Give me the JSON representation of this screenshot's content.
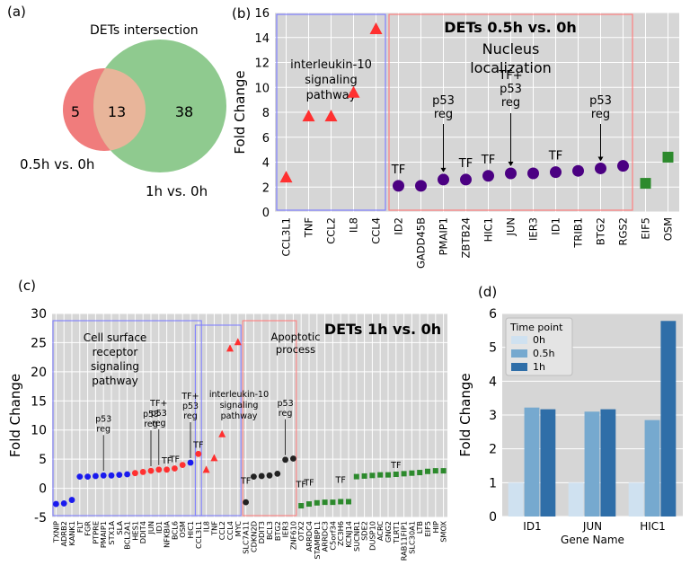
{
  "panels": {
    "a": {
      "label": "(a)",
      "title": "DETs intersection"
    },
    "b": {
      "label": "(b)"
    },
    "c": {
      "label": "(c)"
    },
    "d": {
      "label": "(d)"
    }
  },
  "colors": {
    "panel_bg": "#d6d6d6",
    "grid": "#ffffff",
    "venn_left": "#f07c7c",
    "venn_right": "#8fca8f",
    "venn_overlap": "#e8b59a",
    "red_marker": "#ff3030",
    "purple_marker": "#4b0082",
    "green_marker": "#2d8a2d",
    "blue_marker": "#1a1aee",
    "black_marker": "#222222",
    "blue_box": "#8080ff",
    "red_box": "#ff8080",
    "bar_0h": "#cfe1f0",
    "bar_05h": "#76a9cf",
    "bar_1h": "#2f6ea8"
  },
  "chart_data": [
    {
      "panel": "a",
      "type": "venn",
      "title": "DETs intersection",
      "sets": [
        {
          "name": "0.5h vs. 0h",
          "only": 5
        },
        {
          "name": "1h vs. 0h",
          "only": 38
        }
      ],
      "intersection": 13
    },
    {
      "panel": "b",
      "type": "scatter",
      "title": "DETs 0.5h vs. 0h",
      "ylabel": "Fold Change",
      "xlabel": "",
      "ylim": [
        0,
        16
      ],
      "yticks": [
        0,
        2,
        4,
        6,
        8,
        10,
        12,
        14,
        16
      ],
      "categories": [
        "CCL3L1",
        "TNF",
        "CCL2",
        "IL8",
        "CCL4",
        "ID2",
        "GADD45B",
        "PMAIP1",
        "ZBTB24",
        "HIC1",
        "JUN",
        "IER3",
        "ID1",
        "TRIB1",
        "BTG2",
        "RGS2",
        "EIF5",
        "OSM"
      ],
      "values": [
        2.8,
        7.7,
        7.7,
        9.6,
        14.7,
        2.1,
        2.1,
        2.6,
        2.6,
        2.9,
        3.1,
        3.1,
        3.2,
        3.3,
        3.5,
        3.7,
        2.3,
        4.4
      ],
      "groups": [
        "tri",
        "tri",
        "tri",
        "tri",
        "tri",
        "circle",
        "circle",
        "circle",
        "circle",
        "circle",
        "circle",
        "circle",
        "circle",
        "circle",
        "circle",
        "circle",
        "square",
        "square"
      ],
      "boxes": [
        {
          "label": "interleukin-10\nsignaling\npathway",
          "from": 0,
          "to": 4,
          "color": "blue_box"
        },
        {
          "label": "Nucleus\nlocalization",
          "from": 5,
          "to": 15,
          "color": "red_box"
        }
      ],
      "annotations": [
        {
          "index": 5,
          "text": "TF"
        },
        {
          "index": 7,
          "text": "p53\nreg",
          "arrow": true
        },
        {
          "index": 8,
          "text": "TF"
        },
        {
          "index": 9,
          "text": "TF"
        },
        {
          "index": 10,
          "text": "TF+\np53\nreg",
          "arrow": true
        },
        {
          "index": 12,
          "text": "TF"
        },
        {
          "index": 14,
          "text": "p53\nreg",
          "arrow": true
        }
      ]
    },
    {
      "panel": "c",
      "type": "scatter",
      "title": "DETs 1h vs. 0h",
      "ylabel": "Fold Change",
      "xlabel": "",
      "ylim": [
        -5,
        30
      ],
      "yticks": [
        -5,
        0,
        5,
        10,
        15,
        20,
        25,
        30
      ],
      "categories": [
        "TXNIP",
        "ADRB2",
        "KANK1",
        "FLT",
        "FGR",
        "PTPRE",
        "PMAIP1",
        "STX1A",
        "SLA",
        "BCL2A1",
        "HES1",
        "DDIT4",
        "JUN",
        "ID1",
        "NFKBIA",
        "BCL6",
        "OSM",
        "HIC1",
        "CCL3L1",
        "IL8",
        "TNF",
        "CCL2",
        "CCL4",
        "MYC",
        "SLC7A11",
        "CDKN2D",
        "DDIT3",
        "BCL3",
        "BTG2",
        "IER3",
        "ZNF610",
        "OTX2",
        "ARRDC4",
        "STAMBPL1",
        "ARRDC3",
        "C5orf34",
        "ZC3H6",
        "KCNJ14",
        "SUCNR1",
        "SDE2",
        "DUSP10",
        "ACRC",
        "GNG2",
        "TLRT1",
        "RAB11FIP1",
        "SLC30A1",
        "LTB",
        "EIF5",
        "HIP",
        "SMOX"
      ],
      "values": [
        -2.7,
        -2.6,
        -2.0,
        2.0,
        2.0,
        2.1,
        2.2,
        2.2,
        2.3,
        2.4,
        2.6,
        2.8,
        3.0,
        3.2,
        3.2,
        3.4,
        4.0,
        4.4,
        5.9,
        3.2,
        5.2,
        9.3,
        24.0,
        25.1,
        -2.4,
        2.0,
        2.1,
        2.2,
        2.5,
        4.9,
        5.1,
        -3.0,
        -2.7,
        -2.5,
        -2.4,
        -2.4,
        -2.3,
        -2.3,
        2.0,
        2.1,
        2.2,
        2.3,
        2.3,
        2.4,
        2.5,
        2.6,
        2.7,
        2.9,
        3.0,
        3.0
      ],
      "colors_by_point": [
        "blue",
        "blue",
        "blue",
        "blue",
        "blue",
        "blue",
        "blue",
        "blue",
        "blue",
        "blue",
        "red",
        "red",
        "red",
        "red",
        "red",
        "red",
        "red",
        "blue",
        "red",
        "tri",
        "tri",
        "tri",
        "tri",
        "tri",
        "black",
        "black",
        "black",
        "black",
        "black",
        "black",
        "black",
        "green",
        "green",
        "green",
        "green",
        "green",
        "green",
        "green",
        "green",
        "green",
        "green",
        "green",
        "green",
        "green",
        "green",
        "green",
        "green",
        "green",
        "green",
        "green"
      ],
      "boxes": [
        {
          "label": "Cell surface\nreceptor\nsignaling\npathway",
          "from": 0,
          "to": 18,
          "color": "blue_box"
        },
        {
          "label": "interleukin-10\nsignaling\npathway",
          "from": 18,
          "to": 23,
          "color": "blue_box"
        },
        {
          "label": "Apoptotic\nprocess",
          "from": 24,
          "to": 30,
          "color": "red_box"
        }
      ],
      "annotations": [
        {
          "index": 6,
          "text": "p53\nreg",
          "arrow": true
        },
        {
          "index": 12,
          "text": "p53\nreg",
          "arrow": true
        },
        {
          "index": 13,
          "text": "TF+\np53\nreg",
          "arrow": true
        },
        {
          "index": 14,
          "text": "TF"
        },
        {
          "index": 15,
          "text": "TF"
        },
        {
          "index": 17,
          "text": "TF+\np53\nreg",
          "arrow": true
        },
        {
          "index": 18,
          "text": "TF"
        },
        {
          "index": 24,
          "text": "TF"
        },
        {
          "index": 29,
          "text": "p53\nreg",
          "arrow": true
        },
        {
          "index": 31,
          "text": "TF"
        },
        {
          "index": 32,
          "text": "TF"
        },
        {
          "index": 36,
          "text": "TF"
        },
        {
          "index": 43,
          "text": "TF"
        }
      ]
    },
    {
      "panel": "d",
      "type": "bar",
      "title": "",
      "xlabel": "Gene Name",
      "ylabel": "Fold Change",
      "ylim": [
        0,
        6
      ],
      "yticks": [
        0,
        1,
        2,
        3,
        4,
        5,
        6
      ],
      "categories": [
        "ID1",
        "JUN",
        "HIC1"
      ],
      "legend_title": "Time point",
      "legend_position": "top-left",
      "series": [
        {
          "name": "0h",
          "values": [
            1.0,
            1.0,
            1.0
          ]
        },
        {
          "name": "0.5h",
          "values": [
            3.22,
            3.1,
            2.85
          ]
        },
        {
          "name": "1h",
          "values": [
            3.17,
            3.17,
            5.78
          ]
        }
      ]
    }
  ]
}
